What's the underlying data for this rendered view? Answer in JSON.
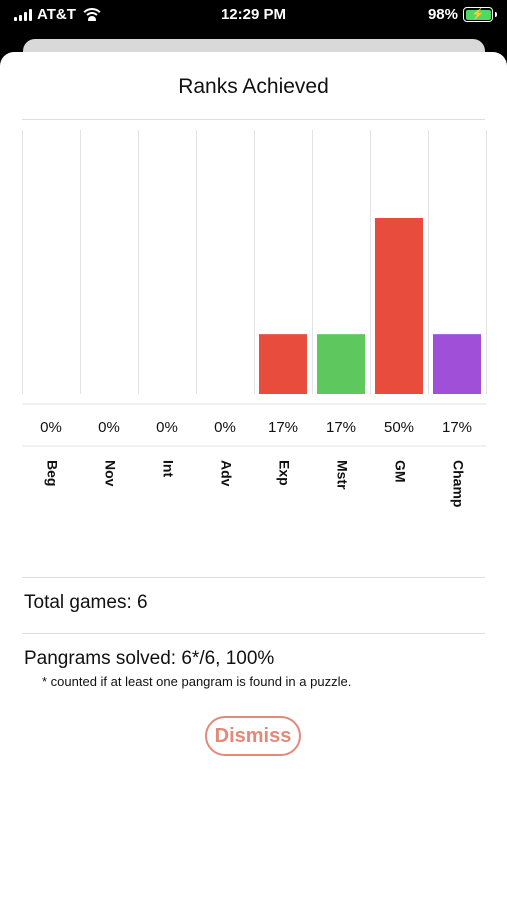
{
  "status_bar": {
    "carrier": "AT&T",
    "time": "12:29 PM",
    "battery": "98%"
  },
  "sheet": {
    "title": "Ranks Achieved",
    "total_games": "Total games: 6",
    "pangrams": "Pangrams solved: 6*/6, 100%",
    "footnote": "* counted if at least one pangram is found in a puzzle.",
    "dismiss_label": "Dismiss"
  },
  "chart_data": {
    "type": "bar",
    "title": "Ranks Achieved",
    "categories": [
      "Beg",
      "Nov",
      "Int",
      "Adv",
      "Exp",
      "Mstr",
      "GM",
      "Champ"
    ],
    "values": [
      0,
      0,
      0,
      0,
      17,
      17,
      50,
      17
    ],
    "labels": [
      "0%",
      "0%",
      "0%",
      "0%",
      "17%",
      "17%",
      "50%",
      "17%"
    ],
    "colors": [
      "#e74c3c",
      "#e74c3c",
      "#e74c3c",
      "#e74c3c",
      "#e74c3c",
      "#5ec85e",
      "#e74c3c",
      "#a050d8"
    ],
    "ylim": [
      0,
      60
    ],
    "grid": true
  }
}
